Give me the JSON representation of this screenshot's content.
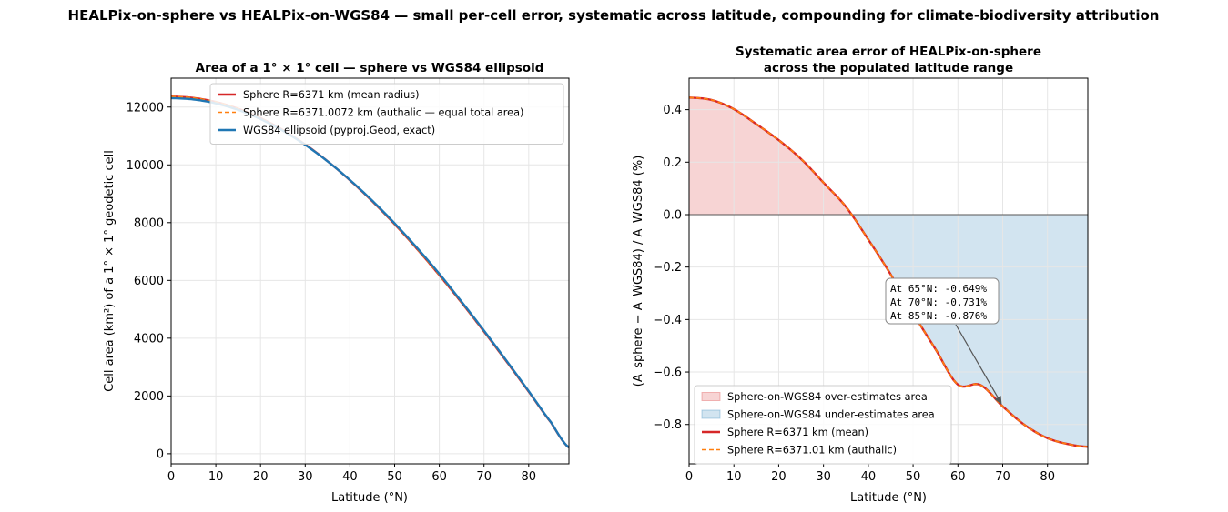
{
  "suptitle": "HEALPix-on-sphere vs HEALPix-on-WGS84 — small per-cell error, systematic across latitude, compounding for climate-biodiversity attribution",
  "colors": {
    "sphere_mean": "#d62728",
    "sphere_authalic": "#ff7f0e",
    "wgs84": "#1f77b4",
    "over_fill": "#d62728",
    "under_fill": "#1f77b4",
    "annotation_arrow": "#555555",
    "grid": "#e6e6e6"
  },
  "chart_data": [
    {
      "type": "line",
      "title": "Area of a 1° × 1° cell — sphere vs WGS84 ellipsoid",
      "xlabel": "Latitude (°N)",
      "ylabel": "Cell area (km²) of a 1° × 1° geodetic cell",
      "xlim": [
        0,
        89
      ],
      "ylim": [
        -350,
        13000
      ],
      "xticks": [
        "0",
        "10",
        "20",
        "30",
        "40",
        "50",
        "60",
        "70",
        "80"
      ],
      "yticks": [
        "0",
        "2000",
        "4000",
        "6000",
        "8000",
        "10000",
        "12000"
      ],
      "grid": true,
      "legend_position": "upper-right",
      "x": [
        0,
        5,
        10,
        15,
        20,
        25,
        30,
        35,
        40,
        45,
        50,
        55,
        60,
        65,
        70,
        75,
        80,
        85,
        89
      ],
      "series": [
        {
          "name": "Sphere R=6371 km (mean radius)",
          "color": "#d62728",
          "style": "solid",
          "values": [
            12364,
            12317,
            12176,
            11943,
            11618,
            11204,
            10705,
            10125,
            9467,
            8740,
            7946,
            7091,
            6182,
            5225,
            4228,
            3199,
            2147,
            1078,
            216
          ]
        },
        {
          "name": "Sphere R=6371.0072 km (authalic — equal total area)",
          "color": "#ff7f0e",
          "style": "dashed",
          "values": [
            12364,
            12317,
            12176,
            11943,
            11618,
            11204,
            10705,
            10125,
            9467,
            8740,
            7946,
            7091,
            6182,
            5225,
            4228,
            3199,
            2147,
            1078,
            216
          ]
        },
        {
          "name": "WGS84 ellipsoid (pyproj.Geod, exact)",
          "color": "#1f77b4",
          "style": "solid",
          "values": [
            12309,
            12264,
            12128,
            11902,
            11585,
            11181,
            10692,
            10122,
            9476,
            8760,
            7976,
            7131,
            6229,
            5259,
            4259,
            3225,
            2166,
            1088,
            218
          ]
        }
      ]
    },
    {
      "type": "area",
      "title": "Systematic area error of HEALPix-on-sphere\nacross the populated latitude range",
      "title_lines": [
        "Systematic area error of HEALPix-on-sphere",
        "across the populated latitude range"
      ],
      "xlabel": "Latitude (°N)",
      "ylabel": "(A_sphere − A_WGS84) / A_WGS84   (%)",
      "xlim": [
        0,
        89
      ],
      "ylim": [
        -0.95,
        0.52
      ],
      "xticks": [
        "0",
        "10",
        "20",
        "30",
        "40",
        "50",
        "60",
        "70",
        "80"
      ],
      "yticks": [
        "0.4",
        "0.2",
        "0.0",
        "−0.2",
        "−0.4",
        "−0.6",
        "−0.8"
      ],
      "grid": true,
      "legend_position": "lower-left",
      "x": [
        0,
        5,
        10,
        15,
        20,
        25,
        30,
        35,
        40,
        45,
        50,
        55,
        60,
        65,
        70,
        75,
        80,
        85,
        89
      ],
      "series": [
        {
          "name": "Sphere R=6371 km (mean)",
          "color": "#d62728",
          "style": "solid",
          "values": [
            0.446,
            0.437,
            0.402,
            0.345,
            0.284,
            0.212,
            0.122,
            0.03,
            -0.095,
            -0.228,
            -0.376,
            -0.513,
            -0.648,
            -0.649,
            -0.731,
            -0.803,
            -0.852,
            -0.876,
            -0.885
          ]
        },
        {
          "name": "Sphere R=6371.01 km (authalic)",
          "color": "#ff7f0e",
          "style": "dashed",
          "values": [
            0.446,
            0.437,
            0.402,
            0.345,
            0.284,
            0.212,
            0.122,
            0.03,
            -0.095,
            -0.228,
            -0.376,
            -0.513,
            -0.648,
            -0.649,
            -0.731,
            -0.803,
            -0.852,
            -0.876,
            -0.885
          ]
        }
      ],
      "fills": [
        {
          "name": "Sphere-on-WGS84 over-estimates area",
          "color": "#d62728",
          "where": "error > 0"
        },
        {
          "name": "Sphere-on-WGS84 under-estimates area",
          "color": "#1f77b4",
          "where": "error < 0"
        }
      ],
      "annotation": {
        "lines": [
          "At 65°N: -0.649%",
          "At 70°N: -0.731%",
          "At 85°N: -0.876%"
        ],
        "arrow_target": {
          "x": 70,
          "y": -0.731
        }
      }
    }
  ]
}
